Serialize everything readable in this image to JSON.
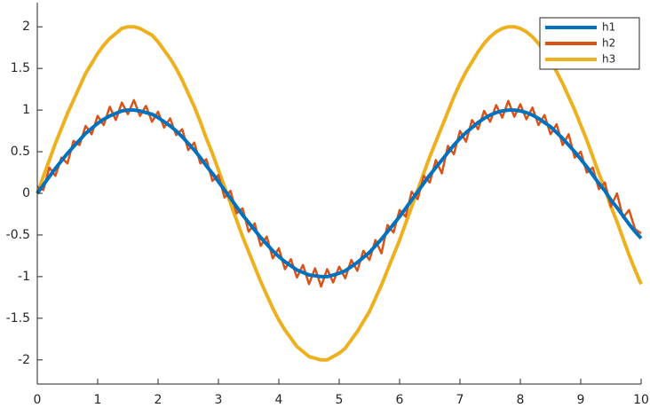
{
  "chart_data": {
    "type": "line",
    "x": [
      0,
      0.1,
      0.2,
      0.3,
      0.4,
      0.5,
      0.6,
      0.7,
      0.8,
      0.9,
      1,
      1.1,
      1.2,
      1.3,
      1.4,
      1.5,
      1.6,
      1.7,
      1.8,
      1.9,
      2,
      2.1,
      2.2,
      2.3,
      2.4,
      2.5,
      2.6,
      2.7,
      2.8,
      2.9,
      3,
      3.1,
      3.2,
      3.3,
      3.4,
      3.5,
      3.6,
      3.7,
      3.8,
      3.9,
      4,
      4.1,
      4.2,
      4.3,
      4.4,
      4.5,
      4.6,
      4.7,
      4.8,
      4.9,
      5,
      5.1,
      5.2,
      5.3,
      5.4,
      5.5,
      5.6,
      5.7,
      5.8,
      5.9,
      6,
      6.1,
      6.2,
      6.3,
      6.4,
      6.5,
      6.6,
      6.7,
      6.8,
      6.9,
      7,
      7.1,
      7.2,
      7.3,
      7.4,
      7.5,
      7.6,
      7.7,
      7.8,
      7.9,
      8,
      8.1,
      8.2,
      8.3,
      8.4,
      8.5,
      8.6,
      8.7,
      8.8,
      8.9,
      9,
      9.1,
      9.2,
      9.3,
      9.4,
      9.5,
      9.6,
      9.7,
      9.8,
      9.9,
      10
    ],
    "series": [
      {
        "name": "h3",
        "color": "#EDB120",
        "values": [
          0,
          0.2,
          0.4,
          0.6,
          0.78,
          0.96,
          1.12,
          1.28,
          1.44,
          1.56,
          1.68,
          1.78,
          1.86,
          1.92,
          1.98,
          2,
          2,
          1.98,
          1.94,
          1.9,
          1.82,
          1.72,
          1.62,
          1.5,
          1.36,
          1.2,
          1.04,
          0.86,
          0.66,
          0.48,
          0.28,
          0.08,
          -0.12,
          -0.32,
          -0.52,
          -0.7,
          -0.88,
          -1.06,
          -1.22,
          -1.38,
          -1.52,
          -1.64,
          -1.74,
          -1.84,
          -1.9,
          -1.96,
          -1.98,
          -2,
          -2,
          -1.96,
          -1.92,
          -1.86,
          -1.76,
          -1.66,
          -1.54,
          -1.42,
          -1.26,
          -1.1,
          -0.92,
          -0.74,
          -0.56,
          -0.36,
          -0.16,
          0.04,
          0.24,
          0.44,
          0.62,
          0.8,
          0.98,
          1.16,
          1.32,
          1.46,
          1.58,
          1.7,
          1.8,
          1.88,
          1.94,
          1.98,
          2,
          2,
          1.98,
          1.94,
          1.88,
          1.8,
          1.7,
          1.6,
          1.46,
          1.32,
          1.16,
          1,
          0.82,
          0.64,
          0.44,
          0.24,
          0.06,
          -0.16,
          -0.34,
          -0.54,
          -0.74,
          -0.92,
          -1.09
        ]
      },
      {
        "name": "h2",
        "color": "#D95319",
        "values": [
          0.08,
          0.04,
          0.31,
          0.21,
          0.43,
          0.36,
          0.63,
          0.58,
          0.81,
          0.71,
          0.93,
          0.82,
          1.04,
          0.88,
          1.09,
          0.95,
          1.12,
          0.93,
          1.05,
          0.86,
          0.98,
          0.79,
          0.9,
          0.7,
          0.77,
          0.52,
          0.61,
          0.36,
          0.41,
          0.15,
          0.22,
          -0.05,
          0.03,
          -0.24,
          -0.18,
          -0.46,
          -0.36,
          -0.63,
          -0.52,
          -0.78,
          -0.66,
          -0.91,
          -0.79,
          -1.01,
          -0.86,
          -1.09,
          -0.9,
          -1.12,
          -0.91,
          -1.07,
          -0.88,
          -1.02,
          -0.8,
          -0.93,
          -0.69,
          -0.8,
          -0.56,
          -0.72,
          -0.38,
          -0.47,
          -0.2,
          -0.28,
          0.02,
          -0.07,
          0.21,
          0.13,
          0.4,
          0.24,
          0.57,
          0.47,
          0.75,
          0.62,
          0.88,
          0.77,
          0.99,
          0.86,
          1.06,
          0.91,
          1.11,
          0.92,
          1.07,
          0.89,
          1.03,
          0.82,
          0.94,
          0.71,
          0.83,
          0.58,
          0.71,
          0.43,
          0.5,
          0.25,
          0.31,
          0.05,
          0.13,
          -0.16,
          0,
          -0.29,
          -0.2,
          -0.43,
          -0.48
        ]
      },
      {
        "name": "h1",
        "color": "#0072BD",
        "values": [
          0,
          0.1,
          0.2,
          0.3,
          0.39,
          0.48,
          0.56,
          0.64,
          0.72,
          0.78,
          0.84,
          0.89,
          0.93,
          0.96,
          0.99,
          1,
          1,
          0.99,
          0.97,
          0.95,
          0.91,
          0.86,
          0.81,
          0.75,
          0.68,
          0.6,
          0.52,
          0.43,
          0.33,
          0.24,
          0.14,
          0.04,
          -0.06,
          -0.16,
          -0.26,
          -0.35,
          -0.44,
          -0.53,
          -0.61,
          -0.69,
          -0.76,
          -0.82,
          -0.87,
          -0.92,
          -0.95,
          -0.98,
          -0.99,
          -1,
          -1,
          -0.98,
          -0.96,
          -0.93,
          -0.88,
          -0.83,
          -0.77,
          -0.71,
          -0.63,
          -0.55,
          -0.46,
          -0.37,
          -0.28,
          -0.18,
          -0.08,
          0.02,
          0.12,
          0.22,
          0.31,
          0.4,
          0.49,
          0.58,
          0.66,
          0.73,
          0.79,
          0.85,
          0.9,
          0.94,
          0.97,
          0.99,
          1,
          1,
          0.99,
          0.97,
          0.94,
          0.9,
          0.85,
          0.8,
          0.73,
          0.66,
          0.58,
          0.5,
          0.41,
          0.32,
          0.22,
          0.12,
          0.03,
          -0.08,
          -0.17,
          -0.27,
          -0.37,
          -0.46,
          -0.54
        ]
      }
    ],
    "legend_order": [
      "h1",
      "h2",
      "h3"
    ],
    "xlim": [
      0,
      10
    ],
    "ylim": [
      -2.29,
      2.29
    ],
    "xticks": [
      0,
      1,
      2,
      3,
      4,
      5,
      6,
      7,
      8,
      9,
      10
    ],
    "yticks": [
      -2,
      -1.5,
      -1,
      -0.5,
      0,
      0.5,
      1,
      1.5,
      2
    ],
    "legend": "northeast"
  }
}
